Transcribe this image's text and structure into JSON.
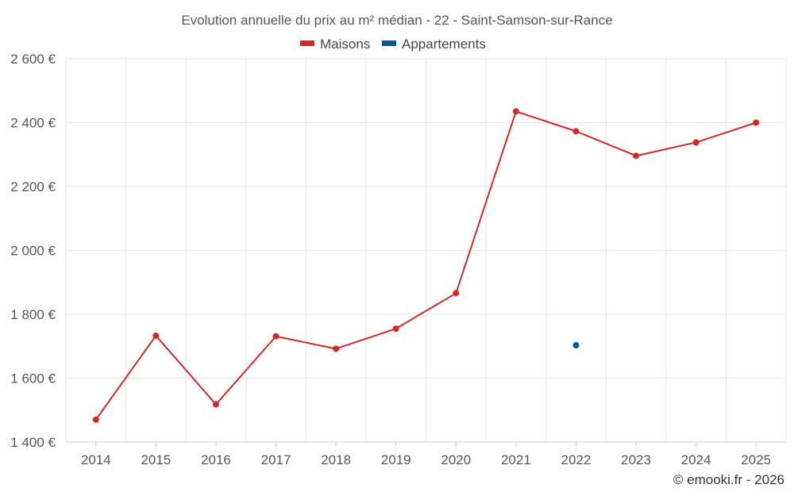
{
  "chart_data": {
    "type": "line",
    "title": "Evolution annuelle du prix au m² médian - 22 - Saint-Samson-sur-Rance",
    "categories": [
      "2014",
      "2015",
      "2016",
      "2017",
      "2018",
      "2019",
      "2020",
      "2021",
      "2022",
      "2023",
      "2024",
      "2025"
    ],
    "series": [
      {
        "name": "Maisons",
        "color": "#d62728",
        "values": [
          1470,
          1733,
          1518,
          1731,
          1692,
          1755,
          1866,
          2435,
          2373,
          2296,
          2338,
          2400
        ]
      },
      {
        "name": "Appartements",
        "color": "#005b96",
        "values": [
          null,
          null,
          null,
          null,
          null,
          null,
          null,
          null,
          1703,
          null,
          null,
          null
        ]
      }
    ],
    "ylim": [
      1400,
      2600
    ],
    "yticks": [
      1400,
      1600,
      1800,
      2000,
      2200,
      2400,
      2600
    ],
    "ytick_labels": [
      "1 400 €",
      "1 600 €",
      "1 800 €",
      "2 000 €",
      "2 200 €",
      "2 400 €",
      "2 600 €"
    ],
    "legend_position": "top-center",
    "grid": true
  },
  "credit": "© emooki.fr - 2026"
}
